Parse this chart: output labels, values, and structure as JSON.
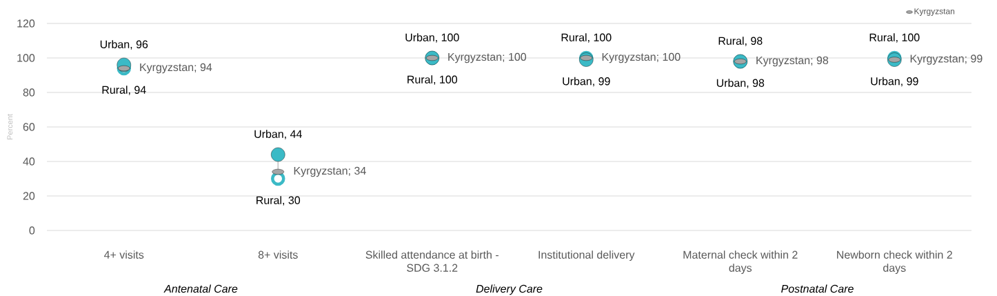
{
  "chart_data": {
    "type": "scatter",
    "ylabel": "Percent",
    "categories": [
      "4+ visits",
      "8+ visits",
      "Skilled attendance at birth - SDG 3.1.2",
      "Institutional delivery",
      "Maternal check within 2 days",
      "Newborn check within 2 days"
    ],
    "series": [
      {
        "color": "#3bbac6",
        "marker": "circle",
        "values": [
          94,
          30,
          100,
          100,
          98,
          100
        ],
        "value_labels": [
          "Rural, 94",
          "Rural, 30",
          "Rural, 100",
          "Rural, 100",
          "Rural, 98",
          "Rural, 100"
        ]
      },
      {
        "color": "#3bbac6",
        "marker": "circle",
        "values": [
          96,
          44,
          100,
          99,
          98,
          99
        ],
        "value_labels": [
          "Urban, 96",
          "Urban, 44",
          "Urban, 100",
          "Urban, 99",
          "Urban, 98",
          "Urban, 99"
        ]
      },
      {
        "name": "Kyrgyzstan",
        "color": "#a5a5a5",
        "values": [
          94,
          34,
          100,
          100,
          98,
          99
        ],
        "value_labels": [
          "Kyrgyzstan; 94",
          "Kyrgyzstan; 34",
          "Kyrgyzstan; 100",
          "Kyrgyzstan; 100",
          "Kyrgyzstan; 98",
          "Kyrgyzstan; 99"
        ]
      }
    ],
    "ylim": [
      0,
      120
    ],
    "yticks": [
      0,
      20,
      40,
      60,
      80,
      100,
      120
    ],
    "grid": "y",
    "legend": "top right",
    "annotations": [
      "Antenatal Care",
      "Delivery Care",
      "Postnatal Care"
    ]
  }
}
